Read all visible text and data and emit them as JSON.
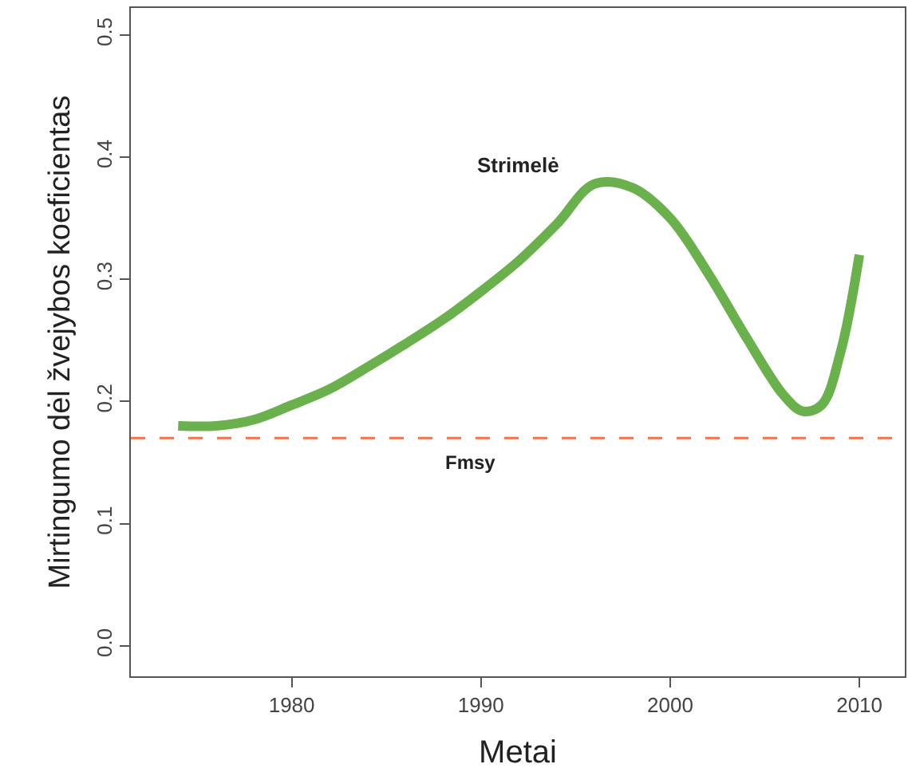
{
  "chart_data": {
    "type": "line",
    "xlabel": "Metai",
    "ylabel": "Mirtingumo dėl žvejybos koeficientas",
    "x": [
      1974,
      1976,
      1978,
      1980,
      1982,
      1984,
      1986,
      1988,
      1990,
      1992,
      1994,
      1996,
      1998,
      2000,
      2002,
      2004,
      2006,
      2007,
      2008,
      2009,
      2010
    ],
    "series": [
      {
        "name": "Strimelė",
        "color": "#6ab04c",
        "values": [
          0.18,
          0.18,
          0.185,
          0.197,
          0.21,
          0.228,
          0.247,
          0.267,
          0.29,
          0.315,
          0.345,
          0.378,
          0.375,
          0.35,
          0.305,
          0.253,
          0.205,
          0.192,
          0.197,
          0.24,
          0.32
        ]
      }
    ],
    "xlim": [
      1971.5,
      2012.4
    ],
    "xticks": [
      1980,
      1990,
      2000,
      2010
    ],
    "ylim": [
      -0.025,
      0.522
    ],
    "yticks": [
      {
        "value": 0,
        "label": "0.0"
      },
      0.1,
      0.2,
      0.3,
      0.4,
      0.5
    ],
    "ref_lines": [
      {
        "axis": "y",
        "value": 0.17,
        "label": "Fmsy",
        "color": "#f4734f",
        "line_style": "dashed"
      }
    ],
    "legend": false,
    "marker": "none",
    "line_style": "solid"
  }
}
